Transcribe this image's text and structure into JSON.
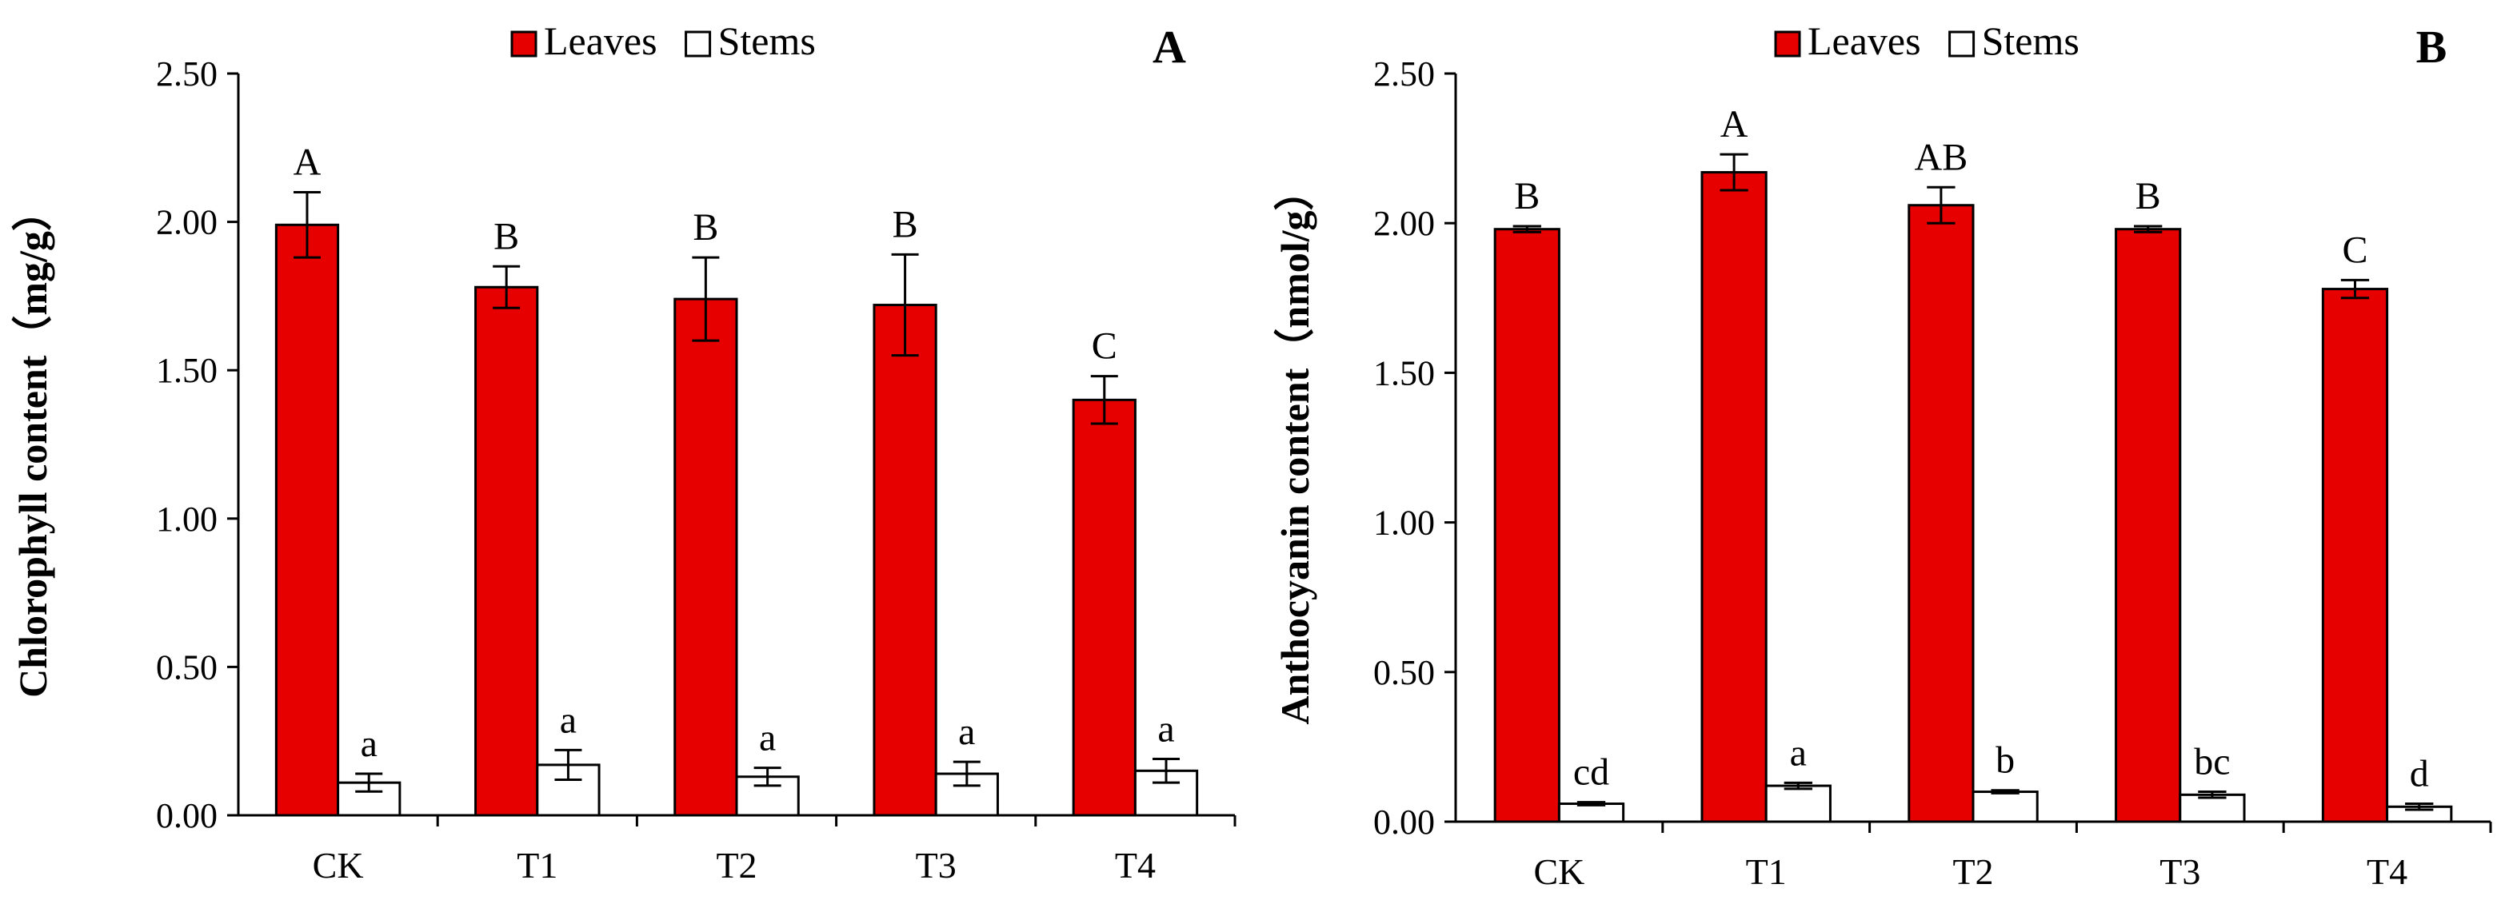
{
  "colors": {
    "leaves": "#e60000",
    "stems": "#ffffff",
    "axis": "#000000"
  },
  "chart_data": [
    {
      "type": "bar",
      "panel": "A",
      "ylabel": "Chlorophyll content（mg/g）",
      "ylim": [
        0,
        2.5
      ],
      "yticks": [
        "0.00",
        "0.50",
        "1.00",
        "1.50",
        "2.00",
        "2.50"
      ],
      "categories": [
        "CK",
        "T1",
        "T2",
        "T3",
        "T4"
      ],
      "legend": {
        "position": "top-center",
        "entries": [
          "Leaves",
          "Stems"
        ]
      },
      "series": [
        {
          "name": "Leaves",
          "color": "#e60000",
          "values": [
            1.99,
            1.78,
            1.74,
            1.72,
            1.4
          ],
          "errors": [
            0.11,
            0.07,
            0.14,
            0.17,
            0.08
          ],
          "letters": [
            "A",
            "B",
            "B",
            "B",
            "C"
          ]
        },
        {
          "name": "Stems",
          "color": "#ffffff",
          "values": [
            0.11,
            0.17,
            0.13,
            0.14,
            0.15
          ],
          "errors": [
            0.03,
            0.05,
            0.03,
            0.04,
            0.04
          ],
          "letters": [
            "a",
            "a",
            "a",
            "a",
            "a"
          ]
        }
      ]
    },
    {
      "type": "bar",
      "panel": "B",
      "ylabel": "Anthocyanin content（nmol/g）",
      "ylim": [
        0,
        2.5
      ],
      "yticks": [
        "0.00",
        "0.50",
        "1.00",
        "1.50",
        "2.00",
        "2.50"
      ],
      "categories": [
        "CK",
        "T1",
        "T2",
        "T3",
        "T4"
      ],
      "legend": {
        "position": "top-center",
        "entries": [
          "Leaves",
          "Stems"
        ]
      },
      "series": [
        {
          "name": "Leaves",
          "color": "#e60000",
          "values": [
            1.98,
            2.17,
            2.06,
            1.98,
            1.78
          ],
          "errors": [
            0.01,
            0.06,
            0.06,
            0.01,
            0.03
          ],
          "letters": [
            "B",
            "A",
            "AB",
            "B",
            "C"
          ]
        },
        {
          "name": "Stems",
          "color": "#ffffff",
          "values": [
            0.06,
            0.12,
            0.1,
            0.09,
            0.05
          ],
          "errors": [
            0.005,
            0.01,
            0.005,
            0.01,
            0.01
          ],
          "letters": [
            "cd",
            "a",
            "b",
            "bc",
            "d"
          ]
        }
      ]
    }
  ]
}
